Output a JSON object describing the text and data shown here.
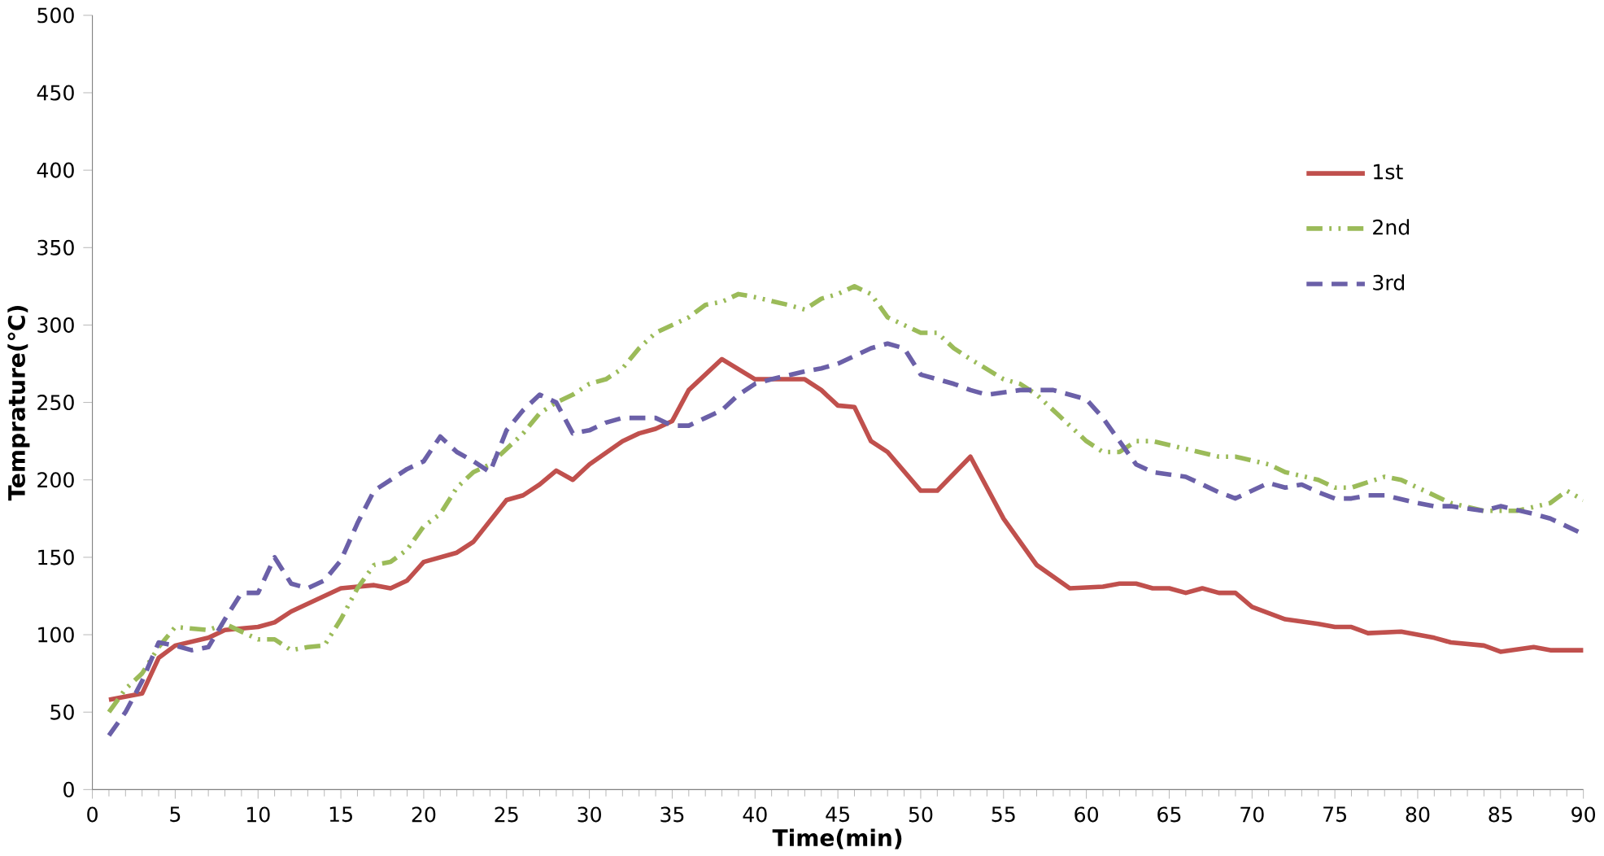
{
  "chart_data": {
    "type": "line",
    "xlabel": "Time(min)",
    "ylabel": "Temprature(℃)",
    "xlim": [
      0,
      90
    ],
    "ylim": [
      0,
      500
    ],
    "xticks": [
      0,
      5,
      10,
      15,
      20,
      25,
      30,
      35,
      40,
      45,
      50,
      55,
      60,
      65,
      70,
      75,
      80,
      85,
      90
    ],
    "yticks": [
      0,
      50,
      100,
      150,
      200,
      250,
      300,
      350,
      400,
      450,
      500
    ],
    "grid": false,
    "legend": "right",
    "marker": "none",
    "series": [
      {
        "name": "1st",
        "color": "#c0504d",
        "line_style": "solid",
        "x": [
          1,
          3,
          4,
          5,
          7,
          8,
          10,
          11,
          12,
          14,
          15,
          17,
          18,
          19,
          20,
          22,
          23,
          25,
          26,
          27,
          28,
          29,
          30,
          32,
          33,
          34,
          35,
          36,
          38,
          40,
          41,
          43,
          44,
          45,
          46,
          47,
          48,
          50,
          51,
          53,
          55,
          57,
          59,
          61,
          62,
          63,
          64,
          65,
          66,
          67,
          68,
          69,
          70,
          72,
          74,
          75,
          76,
          77,
          79,
          80,
          81,
          82,
          84,
          85,
          87,
          88,
          90
        ],
        "values": [
          58,
          62,
          85,
          93,
          98,
          103,
          105,
          108,
          115,
          125,
          130,
          132,
          130,
          135,
          147,
          153,
          160,
          187,
          190,
          197,
          206,
          200,
          210,
          225,
          230,
          233,
          238,
          258,
          278,
          265,
          265,
          265,
          258,
          248,
          247,
          225,
          218,
          193,
          193,
          215,
          175,
          145,
          130,
          131,
          133,
          133,
          130,
          130,
          127,
          130,
          127,
          127,
          118,
          110,
          107,
          105,
          105,
          101,
          102,
          100,
          98,
          95,
          93,
          89,
          92,
          90,
          90
        ]
      },
      {
        "name": "2nd",
        "color": "#9bbb59",
        "line_style": "dashdot",
        "x": [
          1,
          2,
          3,
          4,
          5,
          7,
          8,
          10,
          11,
          12,
          13,
          14,
          15,
          16,
          17,
          18,
          19,
          20,
          21,
          22,
          23,
          24,
          25,
          26,
          27,
          28,
          29,
          30,
          31,
          32,
          33,
          34,
          35,
          36,
          37,
          38,
          39,
          40,
          42,
          43,
          44,
          45,
          46,
          47,
          48,
          49,
          50,
          51,
          52,
          53,
          55,
          56,
          57,
          58,
          60,
          61,
          62,
          63,
          64,
          66,
          68,
          69,
          71,
          72,
          74,
          75,
          76,
          78,
          79,
          80,
          82,
          84,
          86,
          88,
          89,
          90
        ],
        "values": [
          50,
          65,
          75,
          92,
          105,
          103,
          107,
          97,
          97,
          90,
          92,
          93,
          110,
          130,
          145,
          147,
          155,
          170,
          178,
          195,
          205,
          210,
          220,
          230,
          243,
          250,
          255,
          262,
          265,
          272,
          285,
          295,
          300,
          305,
          313,
          315,
          320,
          318,
          313,
          310,
          317,
          320,
          325,
          320,
          305,
          300,
          295,
          295,
          285,
          278,
          265,
          262,
          255,
          245,
          225,
          218,
          218,
          225,
          225,
          220,
          215,
          215,
          210,
          205,
          200,
          195,
          195,
          202,
          200,
          195,
          185,
          180,
          180,
          185,
          193,
          187
        ]
      },
      {
        "name": "3rd",
        "color": "#6b60a8",
        "line_style": "dashed",
        "x": [
          1,
          2,
          3,
          4,
          5,
          6,
          7,
          8,
          9,
          10,
          11,
          12,
          13,
          14,
          15,
          16,
          17,
          18,
          19,
          20,
          21,
          22,
          23,
          24,
          25,
          26,
          27,
          28,
          29,
          30,
          31,
          32,
          33,
          34,
          35,
          36,
          37,
          38,
          39,
          40,
          41,
          43,
          44,
          45,
          46,
          47,
          48,
          49,
          50,
          52,
          53,
          54,
          56,
          57,
          58,
          59,
          60,
          61,
          62,
          63,
          64,
          66,
          68,
          69,
          70,
          71,
          72,
          73,
          74,
          75,
          76,
          77,
          78,
          80,
          81,
          82,
          84,
          85,
          87,
          88,
          90
        ],
        "values": [
          35,
          50,
          70,
          95,
          93,
          90,
          92,
          110,
          127,
          127,
          150,
          133,
          130,
          135,
          148,
          172,
          193,
          200,
          207,
          212,
          228,
          218,
          212,
          205,
          232,
          245,
          255,
          250,
          230,
          232,
          237,
          240,
          240,
          240,
          235,
          235,
          240,
          245,
          255,
          262,
          265,
          270,
          272,
          275,
          280,
          285,
          288,
          285,
          268,
          262,
          258,
          255,
          258,
          258,
          258,
          255,
          252,
          240,
          225,
          210,
          205,
          202,
          192,
          188,
          193,
          198,
          195,
          197,
          192,
          188,
          188,
          190,
          190,
          185,
          183,
          183,
          180,
          183,
          178,
          175,
          165
        ]
      }
    ]
  }
}
